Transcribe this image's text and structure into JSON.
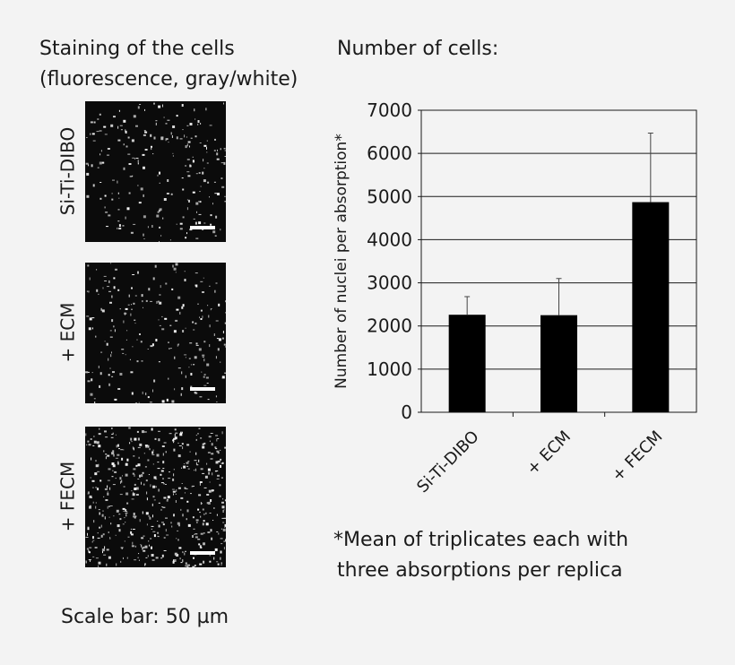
{
  "left_panel": {
    "title_line1": "Staining of the cells",
    "title_line2": "(fluorescence, gray/white)",
    "micrographs": [
      {
        "label": "Si-Ti-DIBO",
        "density": "low"
      },
      {
        "label": "+ ECM",
        "density": "low"
      },
      {
        "label": "+ FECM",
        "density": "high"
      }
    ],
    "scale_note": "Scale bar: 50 µm"
  },
  "right_panel": {
    "title": "Number of cells:",
    "footnote_line1": "*Mean of triplicates each with",
    "footnote_line2": "three absorptions per replica"
  },
  "chart_data": {
    "type": "bar",
    "title": "",
    "xlabel": "",
    "ylabel": "Number of nuclei per absorption*",
    "categories": [
      "Si-Ti-DIBO",
      "+ ECM",
      "+ FECM"
    ],
    "values": [
      2260,
      2250,
      4870
    ],
    "error_upper": [
      420,
      850,
      1600
    ],
    "ylim": [
      0,
      7000
    ],
    "yticks": [
      0,
      1000,
      2000,
      3000,
      4000,
      5000,
      6000,
      7000
    ],
    "grid": true,
    "bar_color": "#000000"
  }
}
